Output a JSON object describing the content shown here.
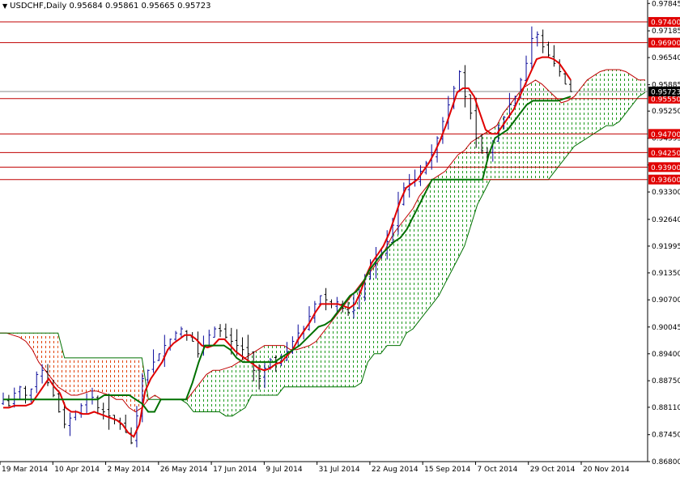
{
  "header": {
    "symbol": "USDCHF,Daily",
    "open": "0.95684",
    "high": "0.95861",
    "low": "0.95665",
    "close": "0.95723",
    "menu_icon": "triangle-down-icon"
  },
  "colors": {
    "background": "#ffffff",
    "bull_candle": "#0a0a9a",
    "bear_candle": "#000000",
    "tenkan": "#e00000",
    "kijun": "#007000",
    "span_a": "#c00000",
    "span_b": "#007000",
    "kumo_bull_fill": "#1e9a1e",
    "kumo_bear_fill": "#e04000",
    "level_line": "#c00000",
    "level_label_bg": "#e00000",
    "price_label_bg": "#000000",
    "axis": "#000000"
  },
  "chart_data": {
    "type": "candlestick",
    "title": "USDCHF,Daily",
    "ylim": [
      0.868,
      0.9785
    ],
    "y_ticks": [
      "0.97845",
      "0.97185",
      "0.96540",
      "0.95885",
      "0.95250",
      "0.94595",
      "0.93950",
      "0.93300",
      "0.92640",
      "0.91995",
      "0.91350",
      "0.90700",
      "0.90045",
      "0.89400",
      "0.88750",
      "0.88110",
      "0.87450",
      "0.86800"
    ],
    "x_ticks": [
      "19 Mar 2014",
      "10 Apr 2014",
      "2 May 2014",
      "26 May 2014",
      "17 Jun 2014",
      "9 Jul 2014",
      "31 Jul 2014",
      "22 Aug 2014",
      "15 Sep 2014",
      "7 Oct 2014",
      "29 Oct 2014",
      "20 Nov 2014"
    ],
    "levels": [
      {
        "label": "0.97400",
        "value": 0.974
      },
      {
        "label": "0.96900",
        "value": 0.969
      },
      {
        "label": "0.95550",
        "value": 0.9555
      },
      {
        "label": "0.94700",
        "value": 0.947
      },
      {
        "label": "0.94250",
        "value": 0.9425
      },
      {
        "label": "0.93900",
        "value": 0.939
      },
      {
        "label": "0.93600",
        "value": 0.936
      }
    ],
    "current_price": {
      "label": "0.95723",
      "value": 0.95723
    },
    "close": [
      0.883,
      0.8815,
      0.8845,
      0.886,
      0.884,
      0.8855,
      0.889,
      0.89,
      0.887,
      0.884,
      0.88,
      0.877,
      0.8785,
      0.88,
      0.8815,
      0.883,
      0.8835,
      0.881,
      0.88,
      0.879,
      0.878,
      0.877,
      0.875,
      0.8725,
      0.879,
      0.888,
      0.89,
      0.892,
      0.894,
      0.896,
      0.8975,
      0.899,
      0.9,
      0.8985,
      0.897,
      0.894,
      0.896,
      0.8985,
      0.9,
      0.8995,
      0.898,
      0.897,
      0.896,
      0.895,
      0.894,
      0.89,
      0.888,
      0.8905,
      0.8925,
      0.892,
      0.893,
      0.8945,
      0.897,
      0.899,
      0.9,
      0.903,
      0.906,
      0.908,
      0.907,
      0.906,
      0.9065,
      0.905,
      0.904,
      0.9045,
      0.908,
      0.912,
      0.916,
      0.917,
      0.918,
      0.921,
      0.925,
      0.93,
      0.934,
      0.935,
      0.936,
      0.938,
      0.94,
      0.942,
      0.946,
      0.95,
      0.954,
      0.958,
      0.962,
      0.956,
      0.952,
      0.946,
      0.943,
      0.942,
      0.945,
      0.949,
      0.951,
      0.954,
      0.956,
      0.96,
      0.964,
      0.97,
      0.971,
      0.968,
      0.966,
      0.964,
      0.962,
      0.959,
      0.9572
    ],
    "tenkan": [
      0.881,
      0.881,
      0.8815,
      0.8815,
      0.8815,
      0.882,
      0.884,
      0.886,
      0.888,
      0.886,
      0.8845,
      0.881,
      0.88,
      0.88,
      0.8795,
      0.8795,
      0.88,
      0.8795,
      0.879,
      0.8785,
      0.878,
      0.877,
      0.875,
      0.874,
      0.877,
      0.885,
      0.888,
      0.89,
      0.892,
      0.895,
      0.8965,
      0.8975,
      0.8985,
      0.8985,
      0.8975,
      0.896,
      0.8955,
      0.896,
      0.8975,
      0.8975,
      0.896,
      0.8945,
      0.8935,
      0.8925,
      0.8915,
      0.8905,
      0.89,
      0.8905,
      0.8915,
      0.892,
      0.8935,
      0.895,
      0.8975,
      0.8995,
      0.9015,
      0.904,
      0.906,
      0.906,
      0.906,
      0.906,
      0.9055,
      0.905,
      0.906,
      0.909,
      0.913,
      0.916,
      0.918,
      0.92,
      0.923,
      0.927,
      0.931,
      0.934,
      0.935,
      0.936,
      0.938,
      0.94,
      0.9425,
      0.9455,
      0.949,
      0.953,
      0.957,
      0.958,
      0.958,
      0.956,
      0.952,
      0.948,
      0.947,
      0.947,
      0.949,
      0.951,
      0.953,
      0.956,
      0.959,
      0.962,
      0.965,
      0.9655,
      0.9655,
      0.965,
      0.964,
      0.962,
      0.96
    ],
    "kijun": [
      0.883,
      0.883,
      0.883,
      0.883,
      0.883,
      0.883,
      0.883,
      0.883,
      0.883,
      0.883,
      0.883,
      0.883,
      0.883,
      0.883,
      0.883,
      0.883,
      0.884,
      0.884,
      0.884,
      0.884,
      0.884,
      0.883,
      0.882,
      0.88,
      0.88,
      0.883,
      0.883,
      0.883,
      0.883,
      0.883,
      0.887,
      0.892,
      0.896,
      0.896,
      0.896,
      0.896,
      0.895,
      0.893,
      0.892,
      0.892,
      0.892,
      0.892,
      0.892,
      0.892,
      0.893,
      0.894,
      0.895,
      0.896,
      0.8975,
      0.899,
      0.9005,
      0.901,
      0.902,
      0.904,
      0.906,
      0.908,
      0.909,
      0.911,
      0.914,
      0.916,
      0.918,
      0.9195,
      0.921,
      0.922,
      0.924,
      0.927,
      0.93,
      0.933,
      0.936,
      0.936,
      0.936,
      0.936,
      0.936,
      0.936,
      0.936,
      0.936,
      0.936,
      0.942,
      0.946,
      0.947,
      0.948,
      0.95,
      0.952,
      0.954,
      0.955,
      0.955,
      0.955,
      0.955,
      0.955,
      0.9555,
      0.956
    ],
    "span_a": [
      0.899,
      0.899,
      0.8985,
      0.898,
      0.897,
      0.895,
      0.892,
      0.89,
      0.888,
      0.886,
      0.885,
      0.884,
      0.884,
      0.8845,
      0.885,
      0.885,
      0.8845,
      0.884,
      0.883,
      0.883,
      0.881,
      0.88,
      0.881,
      0.883,
      0.884,
      0.883,
      0.883,
      0.883,
      0.883,
      0.883,
      0.885,
      0.887,
      0.889,
      0.89,
      0.89,
      0.8905,
      0.891,
      0.892,
      0.893,
      0.894,
      0.895,
      0.896,
      0.896,
      0.896,
      0.896,
      0.895,
      0.895,
      0.8955,
      0.896,
      0.897,
      0.899,
      0.901,
      0.903,
      0.905,
      0.907,
      0.909,
      0.911,
      0.913,
      0.915,
      0.917,
      0.92,
      0.923,
      0.925,
      0.927,
      0.929,
      0.932,
      0.934,
      0.936,
      0.937,
      0.938,
      0.94,
      0.942,
      0.943,
      0.945,
      0.946,
      0.947,
      0.948,
      0.949,
      0.952,
      0.954,
      0.956,
      0.958,
      0.959,
      0.96,
      0.959,
      0.9575,
      0.956,
      0.9545,
      0.955,
      0.956,
      0.958,
      0.96,
      0.961,
      0.962,
      0.9625,
      0.9625,
      0.9625,
      0.962,
      0.961,
      0.96,
      0.96
    ],
    "span_b": [
      0.899,
      0.899,
      0.899,
      0.899,
      0.899,
      0.899,
      0.899,
      0.899,
      0.899,
      0.899,
      0.893,
      0.893,
      0.893,
      0.893,
      0.893,
      0.893,
      0.893,
      0.893,
      0.893,
      0.893,
      0.893,
      0.893,
      0.893,
      0.883,
      0.883,
      0.883,
      0.883,
      0.883,
      0.883,
      0.882,
      0.88,
      0.88,
      0.88,
      0.88,
      0.88,
      0.879,
      0.879,
      0.88,
      0.881,
      0.884,
      0.884,
      0.884,
      0.884,
      0.884,
      0.886,
      0.886,
      0.886,
      0.886,
      0.886,
      0.886,
      0.886,
      0.886,
      0.886,
      0.886,
      0.886,
      0.886,
      0.887,
      0.892,
      0.894,
      0.894,
      0.896,
      0.896,
      0.896,
      0.899,
      0.9,
      0.902,
      0.904,
      0.906,
      0.908,
      0.911,
      0.914,
      0.917,
      0.92,
      0.925,
      0.93,
      0.933,
      0.936,
      0.936,
      0.936,
      0.936,
      0.936,
      0.936,
      0.936,
      0.936,
      0.936,
      0.936,
      0.938,
      0.94,
      0.942,
      0.944,
      0.945,
      0.946,
      0.947,
      0.948,
      0.949,
      0.949,
      0.95,
      0.952,
      0.954,
      0.956,
      0.957
    ]
  }
}
